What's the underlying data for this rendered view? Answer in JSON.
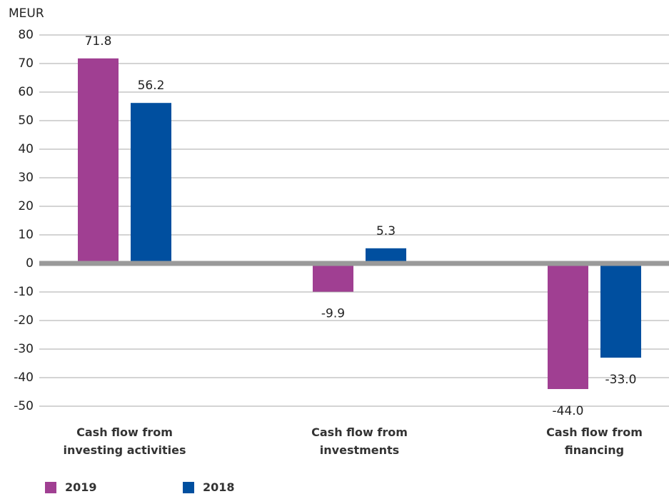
{
  "chart_data": {
    "type": "bar",
    "y_label": "MEUR",
    "categories": [
      "Cash flow from investing activities",
      "Cash flow from investments",
      "Cash flow from financing"
    ],
    "series": [
      {
        "name": "2019",
        "color": "#a03f92",
        "values": [
          71.8,
          -9.9,
          -44.0
        ],
        "value_labels": [
          "71.8",
          "-9.9",
          "-44.0"
        ]
      },
      {
        "name": "2018",
        "color": "#004f9f",
        "values": [
          56.2,
          5.3,
          -33.0
        ],
        "value_labels": [
          "56.2",
          "5.3",
          "-33.0"
        ]
      }
    ],
    "ylim": [
      -50,
      80
    ],
    "yticks": [
      -50,
      -40,
      -30,
      -20,
      -10,
      0,
      10,
      20,
      30,
      40,
      50,
      60,
      70,
      80
    ],
    "grid": true
  }
}
